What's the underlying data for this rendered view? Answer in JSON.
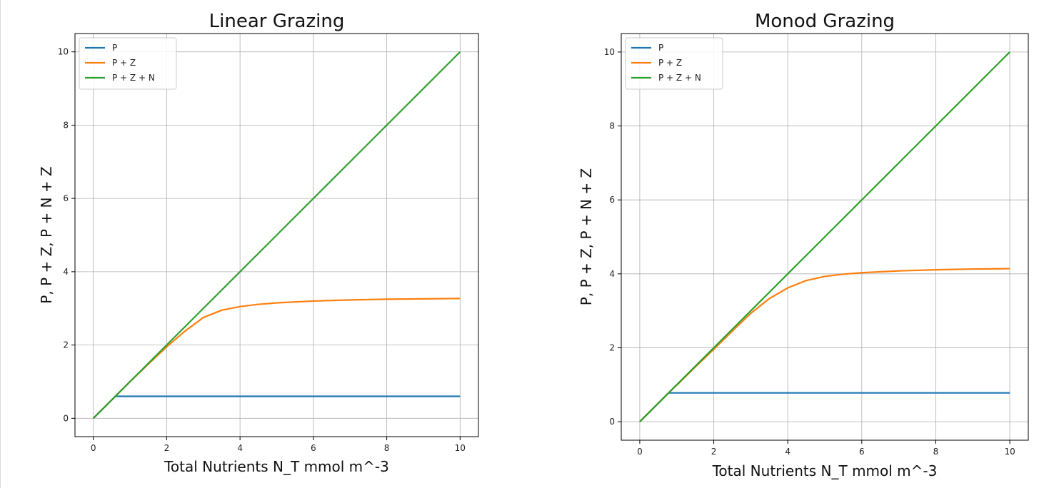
{
  "chart_data": [
    {
      "type": "line",
      "title": "Linear Grazing",
      "xlabel": "Total Nutrients N_T mmol m^-3",
      "ylabel": "P,  P + Z,  P + N + Z",
      "xlim": [
        -0.5,
        10.5
      ],
      "ylim": [
        -0.5,
        10.5
      ],
      "xticks": [
        0,
        2,
        4,
        6,
        8,
        10
      ],
      "yticks": [
        0,
        2,
        4,
        6,
        8,
        10
      ],
      "grid": true,
      "legend_position": "top-left",
      "series": [
        {
          "name": "P",
          "color": "#1f77b4",
          "x": [
            0,
            0.6,
            1,
            2,
            3,
            4,
            5,
            6,
            7,
            8,
            9,
            10
          ],
          "y": [
            0,
            0.6,
            0.6,
            0.6,
            0.6,
            0.6,
            0.6,
            0.6,
            0.6,
            0.6,
            0.6,
            0.6
          ]
        },
        {
          "name": "P + Z",
          "color": "#ff7f0e",
          "x": [
            0,
            0.6,
            1,
            1.5,
            2,
            2.5,
            3,
            3.5,
            4,
            4.5,
            5,
            6,
            7,
            8,
            9,
            10
          ],
          "y": [
            0,
            0.6,
            1.0,
            1.48,
            1.95,
            2.38,
            2.75,
            2.95,
            3.05,
            3.11,
            3.15,
            3.2,
            3.23,
            3.25,
            3.26,
            3.27
          ]
        },
        {
          "name": "P + Z + N",
          "color": "#2ca02c",
          "x": [
            0,
            10
          ],
          "y": [
            0,
            10
          ]
        }
      ]
    },
    {
      "type": "line",
      "title": "Monod Grazing",
      "xlabel": "Total Nutrients N_T mmol m^-3",
      "ylabel": "P,  P + Z,  P + N + Z",
      "xlim": [
        -0.5,
        10.5
      ],
      "ylim": [
        -0.5,
        10.5
      ],
      "xticks": [
        0,
        2,
        4,
        6,
        8,
        10
      ],
      "yticks": [
        0,
        2,
        4,
        6,
        8,
        10
      ],
      "grid": true,
      "legend_position": "top-left",
      "series": [
        {
          "name": "P",
          "color": "#1f77b4",
          "x": [
            0,
            0.78,
            1,
            2,
            3,
            4,
            5,
            6,
            7,
            8,
            9,
            10
          ],
          "y": [
            0,
            0.78,
            0.78,
            0.78,
            0.78,
            0.78,
            0.78,
            0.78,
            0.78,
            0.78,
            0.78,
            0.78
          ]
        },
        {
          "name": "P + Z",
          "color": "#ff7f0e",
          "x": [
            0,
            0.78,
            1,
            1.5,
            2,
            2.5,
            3,
            3.5,
            4,
            4.5,
            5,
            5.5,
            6,
            7,
            8,
            9,
            10
          ],
          "y": [
            0,
            0.78,
            0.99,
            1.48,
            1.96,
            2.45,
            2.93,
            3.33,
            3.62,
            3.82,
            3.93,
            3.99,
            4.03,
            4.08,
            4.11,
            4.13,
            4.14
          ]
        },
        {
          "name": "P + Z + N",
          "color": "#2ca02c",
          "x": [
            0,
            10
          ],
          "y": [
            0,
            10
          ]
        }
      ]
    }
  ]
}
